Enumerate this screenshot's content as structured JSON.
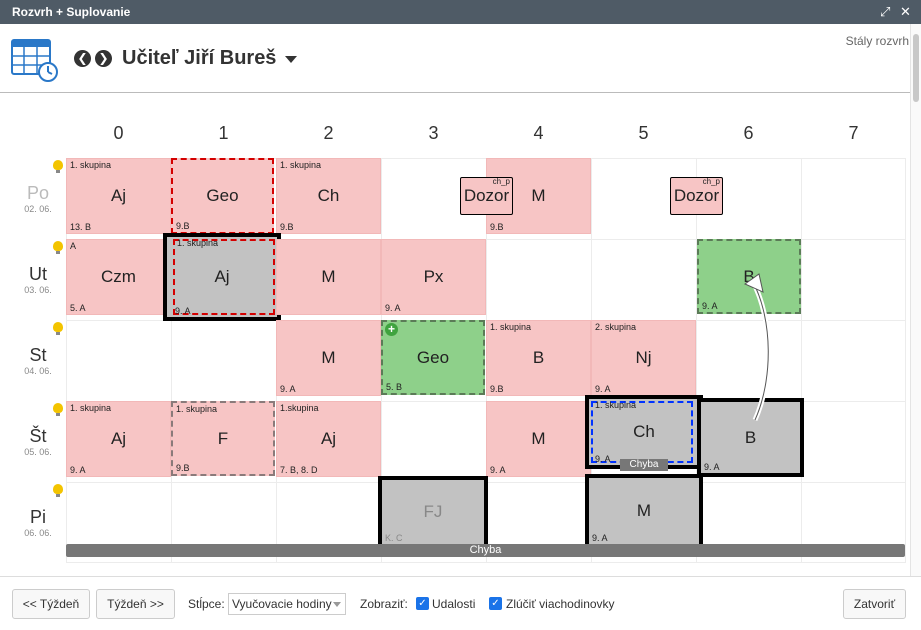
{
  "window": {
    "title": "Rozvrh + Suplovanie"
  },
  "header": {
    "teacher_label": "Učiteľ Jiří Bureš",
    "mode_link": "Stály rozvrh"
  },
  "periods": [
    "0",
    "1",
    "2",
    "3",
    "4",
    "5",
    "6",
    "7"
  ],
  "days": [
    {
      "name": "Po",
      "date": "02. 06."
    },
    {
      "name": "Ut",
      "date": "03. 06."
    },
    {
      "name": "St",
      "date": "04. 06."
    },
    {
      "name": "Št",
      "date": "05. 06."
    },
    {
      "name": "Pi",
      "date": "06. 06."
    }
  ],
  "lessons": {
    "po0": {
      "group": "1. skupina",
      "subject": "Aj",
      "class": "13. B"
    },
    "po1": {
      "group": "",
      "subject": "Geo",
      "class": "9.B"
    },
    "po2": {
      "group": "1. skupina",
      "subject": "Ch",
      "class": "9.B"
    },
    "po4": {
      "group": "",
      "subject": "M",
      "class": "9.B"
    },
    "ut0": {
      "group": "A",
      "subject": "Czm",
      "class": "5. A"
    },
    "ut1": {
      "group": "1. skupina",
      "subject": "Aj",
      "class": "9. A"
    },
    "ut2": {
      "group": "",
      "subject": "M",
      "class": ""
    },
    "ut3": {
      "group": "",
      "subject": "Px",
      "class": "9. A"
    },
    "ut6": {
      "group": "",
      "subject": "B",
      "class": "9. A"
    },
    "st2": {
      "group": "",
      "subject": "M",
      "class": "9. A"
    },
    "st3": {
      "group": "",
      "subject": "Geo",
      "class": "5. B"
    },
    "st4": {
      "group": "1. skupina",
      "subject": "B",
      "class": "9.B"
    },
    "st5": {
      "group": "2. skupina",
      "subject": "Nj",
      "class": "9. A"
    },
    "st0": {
      "group": "1. skupina",
      "subject": "Aj",
      "class": "9. A"
    },
    "st1": {
      "group": "1. skupina",
      "subject": "F",
      "class": "9.B"
    },
    "st2b": {
      "group": "1.skupina",
      "subject": "Aj",
      "class": "7. B, 8. D"
    },
    "st4b": {
      "group": "",
      "subject": "M",
      "class": "9. A"
    },
    "st5b": {
      "group": "1. skupina",
      "subject": "Ch",
      "class": "9. A"
    },
    "st6b": {
      "group": "",
      "subject": "B",
      "class": "9. A"
    },
    "pi3": {
      "group": "",
      "subject": "FJ",
      "class": "K. C"
    },
    "pi5": {
      "group": "",
      "subject": "M",
      "class": "9. A"
    }
  },
  "dozor": {
    "label": "Dozor",
    "tag": "ch_p"
  },
  "errors": {
    "label": "Chyba"
  },
  "footer": {
    "prev_week": "<< Týždeň",
    "next_week": "Týždeň >>",
    "columns_label": "Stĺpce:",
    "columns_value": "Vyučovacie hodiny",
    "show_label": "Zobraziť:",
    "events_label": "Udalosti",
    "merge_label": "Zlúčiť viachodinovky",
    "close_label": "Zatvoriť"
  },
  "icons": {
    "calendar": "calendar-clock-icon",
    "prev": "arrow-left-icon",
    "next": "arrow-right-icon"
  },
  "colors": {
    "lesson": "#f7c5c5",
    "new_lesson": "#8ed08a",
    "cancelled": "#c2c2c2",
    "accent": "#1a73e8"
  }
}
